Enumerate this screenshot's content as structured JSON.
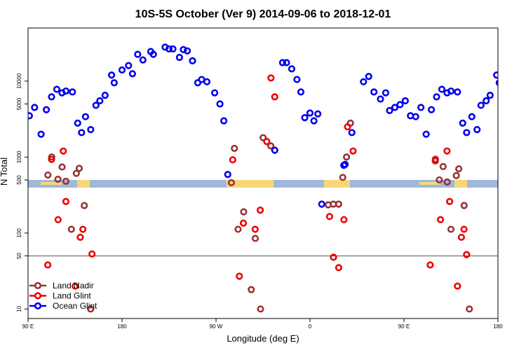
{
  "chart_data": {
    "type": "scatter",
    "title": "10S-5S October (Ver 9)   2014-09-06 to 2018-12-01",
    "xlabel": "Longitude (deg E)",
    "ylabel": "N Total",
    "x_range": [
      90,
      450
    ],
    "y_range": [
      7.5,
      50000
    ],
    "y_scale": "log",
    "x_ticks": [
      {
        "value": 90,
        "label": "90 E"
      },
      {
        "value": 162,
        "label": "180"
      },
      {
        "value": 234,
        "label": "90 W"
      },
      {
        "value": 306,
        "label": "0"
      },
      {
        "value": 378,
        "label": "90 E"
      },
      {
        "value": 450,
        "label": "180"
      }
    ],
    "y_ticks": [
      {
        "value": 10,
        "label": "10"
      },
      {
        "value": 50,
        "label": "50"
      },
      {
        "value": 100,
        "label": "100"
      },
      {
        "value": 500,
        "label": "500"
      },
      {
        "value": 1000,
        "label": "1000"
      },
      {
        "value": 5000,
        "label": "5000"
      },
      {
        "value": 10000,
        "label": "10000"
      }
    ],
    "reference_line_y": 50,
    "legend": "bottom-left",
    "series": [
      {
        "name": "Land Nadir",
        "color": "#993333",
        "points": [
          [
            105.2,
            580
          ],
          [
            108.1,
            1000
          ],
          [
            112.9,
            510
          ],
          [
            116.1,
            740
          ],
          [
            119.0,
            480
          ],
          [
            123.2,
            112
          ],
          [
            127.0,
            610
          ],
          [
            129.2,
            710
          ],
          [
            133.1,
            230
          ],
          [
            138.0,
            10
          ],
          [
            245.8,
            460
          ],
          [
            248.1,
            1300
          ],
          [
            250.9,
            112
          ],
          [
            255.2,
            190
          ],
          [
            261.0,
            18
          ],
          [
            264.1,
            85
          ],
          [
            268.1,
            10
          ],
          [
            270.1,
            1800
          ],
          [
            276.0,
            1400
          ],
          [
            320.0,
            235
          ],
          [
            323.9,
            240
          ],
          [
            328.0,
            240
          ],
          [
            331.1,
            540
          ],
          [
            334.0,
            1000
          ],
          [
            337.0,
            2800
          ],
          [
            402.1,
            940
          ],
          [
            405.1,
            500
          ],
          [
            408.0,
            750
          ],
          [
            411.1,
            470
          ],
          [
            414.0,
            112
          ],
          [
            418.1,
            570
          ],
          [
            420.0,
            700
          ],
          [
            424.1,
            230
          ],
          [
            428.1,
            10
          ]
        ]
      },
      {
        "name": "Land Glint",
        "color": "#ee0000",
        "points": [
          [
            105.1,
            38
          ],
          [
            108.0,
            930
          ],
          [
            113.0,
            150
          ],
          [
            117.0,
            1200
          ],
          [
            119.0,
            260
          ],
          [
            126.1,
            20
          ],
          [
            130.0,
            88
          ],
          [
            132.0,
            112
          ],
          [
            139.0,
            53
          ],
          [
            246.8,
            920
          ],
          [
            251.9,
            27
          ],
          [
            255.0,
            135
          ],
          [
            264.0,
            112
          ],
          [
            267.9,
            200
          ],
          [
            272.9,
            1600
          ],
          [
            276.1,
            11000
          ],
          [
            279.0,
            6200
          ],
          [
            321.0,
            165
          ],
          [
            324.0,
            48
          ],
          [
            328.0,
            35
          ],
          [
            332.0,
            150
          ],
          [
            334.8,
            2500
          ],
          [
            339.0,
            1200
          ],
          [
            398.1,
            38
          ],
          [
            402.0,
            890
          ],
          [
            406.0,
            150
          ],
          [
            411.0,
            1200
          ],
          [
            413.0,
            260
          ],
          [
            419.0,
            20
          ],
          [
            422.0,
            88
          ],
          [
            424.0,
            112
          ],
          [
            426.0,
            52
          ]
        ]
      },
      {
        "name": "Ocean Glint",
        "color": "#0000ee",
        "points": [
          [
            91,
            3500
          ],
          [
            95,
            4500
          ],
          [
            100,
            2000
          ],
          [
            104,
            4200
          ],
          [
            108,
            6200
          ],
          [
            112,
            7800
          ],
          [
            116,
            7000
          ],
          [
            119,
            7400
          ],
          [
            124,
            7200
          ],
          [
            128,
            2800
          ],
          [
            131,
            2100
          ],
          [
            134,
            3400
          ],
          [
            138,
            2300
          ],
          [
            142,
            4800
          ],
          [
            145,
            5500
          ],
          [
            149,
            6500
          ],
          [
            154,
            12000
          ],
          [
            156,
            9500
          ],
          [
            162,
            14000
          ],
          [
            167,
            16000
          ],
          [
            170,
            12500
          ],
          [
            174,
            22500
          ],
          [
            178,
            19000
          ],
          [
            184,
            24500
          ],
          [
            186,
            22500
          ],
          [
            195,
            28000
          ],
          [
            198,
            26500
          ],
          [
            201,
            26500
          ],
          [
            206,
            20500
          ],
          [
            209,
            26000
          ],
          [
            212,
            25000
          ],
          [
            216,
            18500
          ],
          [
            220,
            9500
          ],
          [
            223,
            10500
          ],
          [
            227,
            9800
          ],
          [
            233,
            7000
          ],
          [
            237,
            5000
          ],
          [
            240,
            3000
          ],
          [
            243,
            590
          ],
          [
            279.0,
            1230
          ],
          [
            285.0,
            17500
          ],
          [
            288.0,
            17500
          ],
          [
            292.0,
            14500
          ],
          [
            296.0,
            10500
          ],
          [
            299.0,
            7200
          ],
          [
            302.0,
            3300
          ],
          [
            306.0,
            3800
          ],
          [
            309.0,
            3000
          ],
          [
            312.0,
            3700
          ],
          [
            315.0,
            240
          ],
          [
            338.1,
            2100
          ],
          [
            347.0,
            9800
          ],
          [
            351.0,
            11500
          ],
          [
            355.0,
            7200
          ],
          [
            360.0,
            5800
          ],
          [
            364.0,
            7000
          ],
          [
            367.0,
            4100
          ],
          [
            371.0,
            4500
          ],
          [
            375.0,
            4900
          ],
          [
            379.0,
            5500
          ],
          [
            383.0,
            3500
          ],
          [
            387.0,
            3400
          ],
          [
            391.0,
            4500
          ],
          [
            395.0,
            2000
          ],
          [
            399.0,
            4200
          ],
          [
            403.0,
            6200
          ],
          [
            407.0,
            7800
          ],
          [
            411.0,
            7000
          ],
          [
            414.0,
            7400
          ],
          [
            419.0,
            7200
          ],
          [
            423.0,
            2800
          ],
          [
            426.0,
            2100
          ],
          [
            430.0,
            3400
          ],
          [
            434.0,
            2300
          ],
          [
            437.0,
            4800
          ],
          [
            441.0,
            5500
          ],
          [
            444.0,
            6500
          ],
          [
            449.0,
            12000
          ],
          [
            451.0,
            9500
          ],
          [
            331.9,
            780
          ],
          [
            332.9,
            800
          ]
        ]
      }
    ]
  }
}
